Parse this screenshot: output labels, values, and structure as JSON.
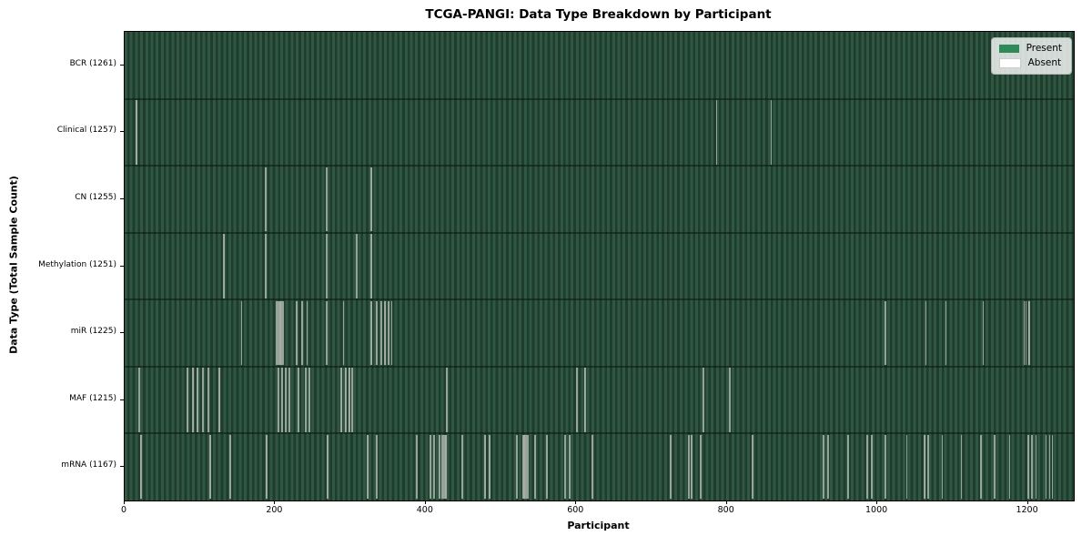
{
  "figure": {
    "title": "TCGA-PANGI: Data Type Breakdown by Participant",
    "x_axis_label": "Participant",
    "y_axis_label": "Data Type (Total Sample Count)"
  },
  "colors": {
    "present_fill": "#2e8b57",
    "absent_fill": "#ffffff",
    "plot_stripe_light": "#2f5843",
    "plot_stripe_dark": "#1f3c2d",
    "absent_line": "#a8afa6",
    "row_divider": "rgba(12,24,16,0.55)",
    "axes_frame": "#000000",
    "legend_background": "rgba(255,255,255,0.8)",
    "legend_border": "#b3b3b3",
    "figure_background": "#ffffff"
  },
  "chart_data": {
    "type": "heatmap",
    "title": "TCGA-PANGI: Data Type Breakdown by Participant",
    "xlabel": "Participant",
    "ylabel": "Data Type (Total Sample Count)",
    "x_range": [
      0,
      1261
    ],
    "x_ticks": [
      0,
      200,
      400,
      600,
      800,
      1000,
      1200
    ],
    "total_participants": 1261,
    "grid": false,
    "legend_position": "upper right",
    "legend": [
      {
        "label": "Present",
        "color": "#2e8b57"
      },
      {
        "label": "Absent",
        "color": "#ffffff"
      }
    ],
    "rows": [
      {
        "label": "BCR (1261)",
        "data_type": "BCR",
        "sample_count": 1261,
        "absent_count": 0,
        "absent_participants": []
      },
      {
        "label": "Clinical (1257)",
        "data_type": "Clinical",
        "sample_count": 1257,
        "absent_count": 4,
        "absent_participants": [
          14,
          15,
          786,
          858
        ]
      },
      {
        "label": "CN (1255)",
        "data_type": "CN",
        "sample_count": 1255,
        "absent_count": 6,
        "absent_participants": [
          186,
          187,
          267,
          268,
          327,
          328
        ]
      },
      {
        "label": "Methylation (1251)",
        "data_type": "Methylation",
        "sample_count": 1251,
        "absent_count": 10,
        "absent_participants": [
          131,
          132,
          186,
          187,
          267,
          268,
          307,
          308,
          327,
          328
        ]
      },
      {
        "label": "miR (1225)",
        "data_type": "miR",
        "sample_count": 1225,
        "absent_count": 36,
        "absent_participants": [
          155,
          201,
          202,
          203,
          204,
          205,
          206,
          207,
          208,
          209,
          210,
          227,
          228,
          235,
          242,
          267,
          268,
          290,
          327,
          328,
          334,
          335,
          340,
          341,
          345,
          346,
          350,
          354,
          1010,
          1064,
          1090,
          1140,
          1194,
          1197,
          1200,
          1201
        ]
      },
      {
        "label": "MAF (1215)",
        "data_type": "MAF",
        "sample_count": 1215,
        "absent_count": 46,
        "absent_participants": [
          18,
          19,
          82,
          83,
          90,
          91,
          96,
          97,
          103,
          104,
          110,
          111,
          125,
          126,
          203,
          204,
          208,
          209,
          213,
          214,
          218,
          219,
          230,
          231,
          239,
          240,
          244,
          245,
          287,
          288,
          292,
          293,
          297,
          298,
          301,
          302,
          427,
          428,
          600,
          601,
          610,
          611,
          768,
          769,
          803,
          804
        ]
      },
      {
        "label": "mRNA (1167)",
        "data_type": "mRNA",
        "sample_count": 1167,
        "absent_count": 94,
        "absent_participants": [
          20,
          21,
          113,
          114,
          139,
          140,
          187,
          188,
          268,
          269,
          322,
          323,
          334,
          335,
          387,
          388,
          405,
          406,
          410,
          411,
          417,
          418,
          421,
          422,
          423,
          424,
          425,
          426,
          427,
          447,
          448,
          478,
          479,
          484,
          485,
          520,
          521,
          528,
          529,
          530,
          531,
          532,
          533,
          534,
          535,
          544,
          545,
          560,
          561,
          584,
          585,
          590,
          591,
          620,
          621,
          724,
          725,
          748,
          749,
          752,
          753,
          764,
          765,
          833,
          834,
          927,
          928,
          933,
          934,
          960,
          961,
          985,
          986,
          991,
          992,
          1010,
          1038,
          1062,
          1063,
          1066,
          1067,
          1086,
          1111,
          1137,
          1155,
          1175,
          1199,
          1200,
          1204,
          1205,
          1210,
          1223,
          1228,
          1232
        ]
      }
    ]
  }
}
